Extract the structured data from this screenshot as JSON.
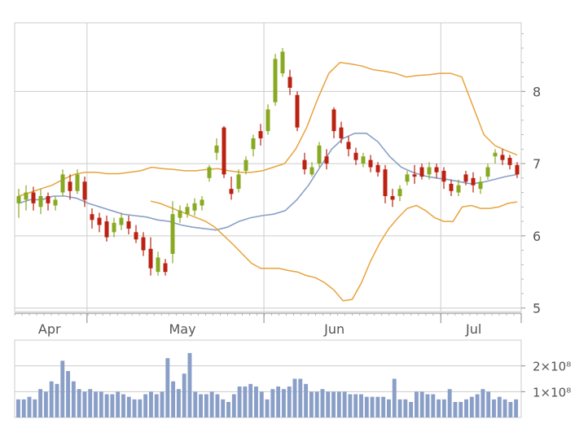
{
  "chart_data": [
    {
      "type": "candlestick",
      "x_labels": [
        "Apr",
        "May",
        "Jun",
        "Jul"
      ],
      "x_label_positions": [
        5.5,
        26.5,
        50.5,
        72.5
      ],
      "x_ticks": [
        9,
        31,
        53,
        63
      ],
      "y_ticks": [
        5,
        6,
        7,
        8
      ],
      "y_tick_labels": [
        "5",
        "6",
        "7",
        "8"
      ],
      "ylim": [
        4.95,
        8.95
      ],
      "xlim": [
        0,
        63
      ],
      "grid": true,
      "colors": {
        "up": "#88aa22",
        "down": "#bb2211",
        "bands": "#e8a33c",
        "average": "#8a9fc8",
        "grid": "#cccccc"
      },
      "candles": [
        [
          6.45,
          6.55,
          6.25,
          6.65
        ],
        [
          6.5,
          6.6,
          6.35,
          6.7
        ],
        [
          6.6,
          6.45,
          6.35,
          6.68
        ],
        [
          6.4,
          6.55,
          6.3,
          6.65
        ],
        [
          6.55,
          6.45,
          6.35,
          6.6
        ],
        [
          6.42,
          6.5,
          6.35,
          6.55
        ],
        [
          6.6,
          6.85,
          6.55,
          6.92
        ],
        [
          6.75,
          6.62,
          6.5,
          6.85
        ],
        [
          6.62,
          6.85,
          6.58,
          6.92
        ],
        [
          6.75,
          6.5,
          6.4,
          6.82
        ],
        [
          6.3,
          6.22,
          6.1,
          6.38
        ],
        [
          6.25,
          6.15,
          6.05,
          6.32
        ],
        [
          6.2,
          5.98,
          5.92,
          6.28
        ],
        [
          6.05,
          6.18,
          5.98,
          6.25
        ],
        [
          6.15,
          6.25,
          6.08,
          6.32
        ],
        [
          6.2,
          6.1,
          6.02,
          6.28
        ],
        [
          6.05,
          5.95,
          5.9,
          6.15
        ],
        [
          5.98,
          5.8,
          5.72,
          6.05
        ],
        [
          5.82,
          5.55,
          5.45,
          5.98
        ],
        [
          5.5,
          5.7,
          5.45,
          5.78
        ],
        [
          5.62,
          5.5,
          5.45,
          5.68
        ],
        [
          5.75,
          6.3,
          5.62,
          6.48
        ],
        [
          6.25,
          6.35,
          6.18,
          6.42
        ],
        [
          6.3,
          6.4,
          6.25,
          6.45
        ],
        [
          6.35,
          6.45,
          6.28,
          6.52
        ],
        [
          6.42,
          6.5,
          6.35,
          6.55
        ],
        [
          6.8,
          6.95,
          6.75,
          6.98
        ],
        [
          7.15,
          7.25,
          7.05,
          7.35
        ],
        [
          7.5,
          6.85,
          6.8,
          7.52
        ],
        [
          6.65,
          6.58,
          6.5,
          6.82
        ],
        [
          6.65,
          6.85,
          6.6,
          6.92
        ],
        [
          6.9,
          7.05,
          6.85,
          7.1
        ],
        [
          7.2,
          7.35,
          7.1,
          7.4
        ],
        [
          7.45,
          7.35,
          7.25,
          7.55
        ],
        [
          7.45,
          7.75,
          7.4,
          7.82
        ],
        [
          7.85,
          8.45,
          7.8,
          8.52
        ],
        [
          8.25,
          8.55,
          8.2,
          8.6
        ],
        [
          8.2,
          8.05,
          7.95,
          8.3
        ],
        [
          7.95,
          7.5,
          7.45,
          8.0
        ],
        [
          7.05,
          6.92,
          6.85,
          7.15
        ],
        [
          6.85,
          6.95,
          6.82,
          7.02
        ],
        [
          7.0,
          7.25,
          6.95,
          7.3
        ],
        [
          7.1,
          7.0,
          6.92,
          7.2
        ],
        [
          7.75,
          7.45,
          7.35,
          7.78
        ],
        [
          7.5,
          7.35,
          7.28,
          7.58
        ],
        [
          7.3,
          7.2,
          7.1,
          7.38
        ],
        [
          7.15,
          7.05,
          6.98,
          7.22
        ],
        [
          7.0,
          7.1,
          6.95,
          7.15
        ],
        [
          7.05,
          6.95,
          6.88,
          7.12
        ],
        [
          6.98,
          6.88,
          6.82,
          7.02
        ],
        [
          6.92,
          6.55,
          6.45,
          6.98
        ],
        [
          6.55,
          6.5,
          6.4,
          6.65
        ],
        [
          6.55,
          6.65,
          6.48,
          6.7
        ],
        [
          6.75,
          6.85,
          6.7,
          6.9
        ],
        [
          6.85,
          6.82,
          6.72,
          6.98
        ],
        [
          6.95,
          6.82,
          6.78,
          7.0
        ],
        [
          6.85,
          6.95,
          6.78,
          7.02
        ],
        [
          6.95,
          6.88,
          6.8,
          7.0
        ],
        [
          6.9,
          6.75,
          6.65,
          6.95
        ],
        [
          6.72,
          6.62,
          6.55,
          6.78
        ],
        [
          6.6,
          6.7,
          6.55,
          6.78
        ],
        [
          6.85,
          6.75,
          6.7,
          6.9
        ],
        [
          6.8,
          6.7,
          6.6,
          6.88
        ],
        [
          6.65,
          6.75,
          6.58,
          6.82
        ],
        [
          6.82,
          6.95,
          6.78,
          7.0
        ],
        [
          7.1,
          7.15,
          7.0,
          7.2
        ],
        [
          7.12,
          7.05,
          6.98,
          7.2
        ],
        [
          7.08,
          6.98,
          6.92,
          7.12
        ],
        [
          6.98,
          6.85,
          6.8,
          7.02
        ]
      ],
      "series": [
        {
          "values": [
            6.55,
            6.6,
            6.65,
            6.7,
            6.78,
            6.85,
            6.88,
            6.88,
            6.86,
            6.86,
            6.88,
            6.9,
            6.95,
            6.93,
            6.92,
            6.9,
            6.9,
            6.92,
            6.93,
            6.9,
            6.88,
            6.88,
            6.9,
            6.95,
            7.0,
            7.2,
            7.5,
            7.9,
            8.25,
            8.4,
            8.38,
            8.35,
            8.3,
            8.28,
            8.25,
            8.2,
            8.22,
            8.23,
            8.25,
            8.25,
            8.2,
            7.8,
            7.4,
            7.25,
            7.18,
            7.12
          ]
        },
        {
          "values": [
            6.45,
            6.5,
            6.5,
            6.55,
            6.55,
            6.52,
            6.45,
            6.4,
            6.35,
            6.3,
            6.28,
            6.26,
            6.22,
            6.2,
            6.15,
            6.12,
            6.1,
            6.08,
            6.12,
            6.2,
            6.25,
            6.28,
            6.3,
            6.35,
            6.5,
            6.7,
            6.95,
            7.2,
            7.35,
            7.42,
            7.42,
            7.3,
            7.1,
            6.95,
            6.88,
            6.83,
            6.8,
            6.78,
            6.75,
            6.72,
            6.74,
            6.78,
            6.82,
            6.85
          ]
        },
        {
          "values": [
            6.48,
            6.45,
            6.4,
            6.35,
            6.3,
            6.25,
            6.2,
            6.12,
            6.0,
            5.88,
            5.75,
            5.62,
            5.55,
            5.55,
            5.55,
            5.52,
            5.5,
            5.45,
            5.42,
            5.35,
            5.25,
            5.1,
            5.12,
            5.35,
            5.65,
            5.9,
            6.1,
            6.25,
            6.38,
            6.42,
            6.35,
            6.25,
            6.2,
            6.2,
            6.4,
            6.42,
            6.38,
            6.38,
            6.4,
            6.45,
            6.47
          ]
        }
      ]
    },
    {
      "type": "bar",
      "y_ticks": [
        100000000,
        200000000
      ],
      "y_tick_labels": [
        "1×10⁸",
        "2×10⁸"
      ],
      "ylim": [
        0,
        300000000
      ],
      "values": [
        70000000,
        70000000,
        80000000,
        70000000,
        110000000,
        100000000,
        140000000,
        130000000,
        220000000,
        180000000,
        140000000,
        110000000,
        100000000,
        110000000,
        100000000,
        100000000,
        90000000,
        90000000,
        100000000,
        90000000,
        80000000,
        70000000,
        70000000,
        90000000,
        100000000,
        90000000,
        100000000,
        230000000,
        140000000,
        110000000,
        170000000,
        250000000,
        100000000,
        90000000,
        90000000,
        100000000,
        90000000,
        70000000,
        60000000,
        90000000,
        120000000,
        120000000,
        130000000,
        120000000,
        100000000,
        70000000,
        110000000,
        120000000,
        110000000,
        120000000,
        150000000,
        150000000,
        130000000,
        100000000,
        100000000,
        110000000,
        100000000,
        100000000,
        100000000,
        100000000,
        90000000,
        90000000,
        90000000,
        80000000,
        80000000,
        80000000,
        80000000,
        70000000,
        150000000,
        70000000,
        70000000,
        60000000,
        100000000,
        100000000,
        90000000,
        90000000,
        70000000,
        70000000,
        110000000,
        60000000,
        60000000,
        70000000,
        80000000,
        90000000,
        110000000,
        100000000,
        70000000,
        80000000,
        70000000,
        60000000,
        70000000
      ]
    }
  ]
}
